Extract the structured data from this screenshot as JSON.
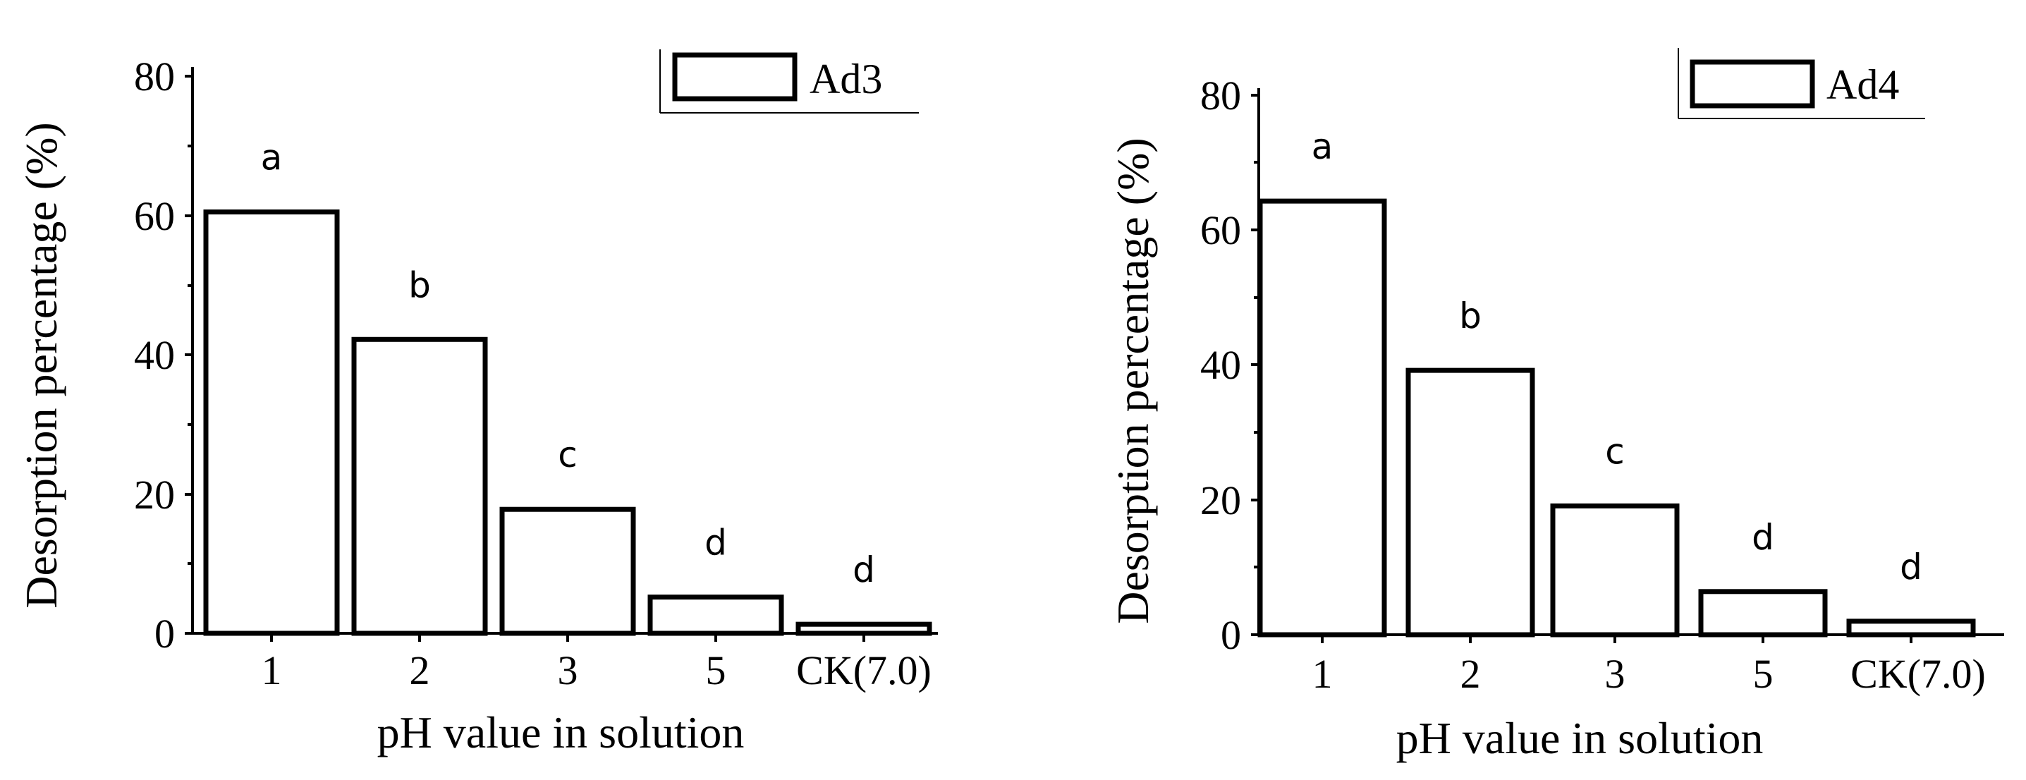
{
  "chart_data": [
    {
      "type": "bar",
      "legend": "Ad3",
      "categories": [
        "1",
        "2",
        "3",
        "5",
        "CK(7.0)"
      ],
      "values": [
        60.5,
        42.2,
        17.8,
        5.2,
        1.3
      ],
      "significance": [
        "a",
        "b",
        "c",
        "d",
        "d"
      ],
      "xlabel": "pH value in solution",
      "ylabel": "Desorption percentage (%)",
      "ylim": [
        0,
        80
      ],
      "yticks": [
        "0",
        "20",
        "40",
        "60",
        "80"
      ],
      "legend_position": "top-right"
    },
    {
      "type": "bar",
      "legend": "Ad4",
      "categories": [
        "1",
        "2",
        "3",
        "5",
        "CK(7.0)"
      ],
      "values": [
        64.3,
        39.2,
        19.1,
        6.4,
        2.0
      ],
      "significance": [
        "a",
        "b",
        "c",
        "d",
        "d"
      ],
      "xlabel": "pH value in solution",
      "ylabel": "Desorption percentage (%)",
      "ylim": [
        0,
        80
      ],
      "yticks": [
        "0",
        "20",
        "40",
        "60",
        "80"
      ],
      "legend_position": "top-right"
    }
  ]
}
